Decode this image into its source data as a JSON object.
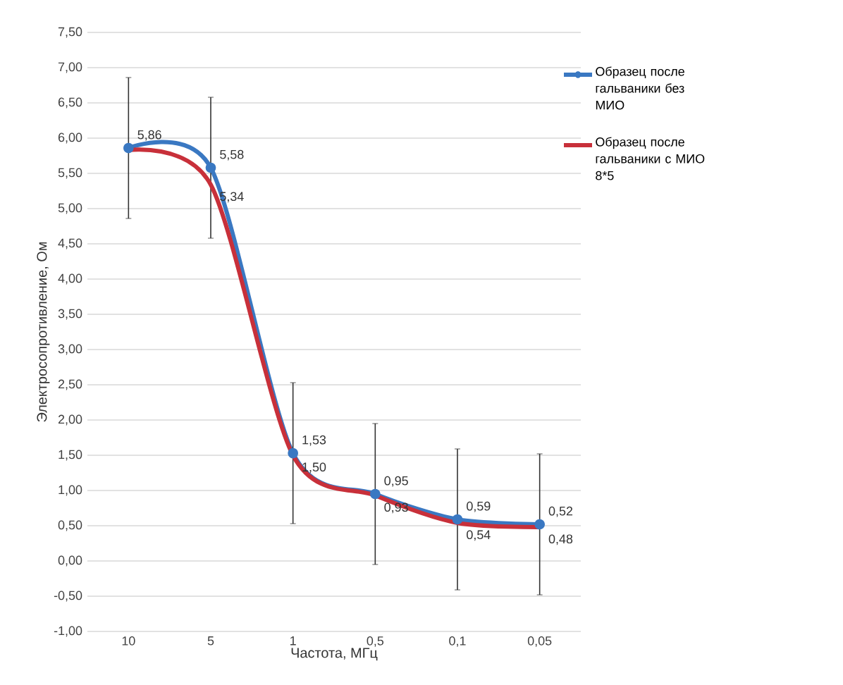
{
  "chart_data": {
    "type": "line",
    "xlabel": "Частота, МГц",
    "ylabel": "Электросопротивление, Ом",
    "categories": [
      "10",
      "5",
      "1",
      "0,5",
      "0,1",
      "0,05"
    ],
    "series": [
      {
        "name": "Образец после гальваники без МИО",
        "color": "#3a78c2",
        "values": [
          5.86,
          5.58,
          1.53,
          0.95,
          0.59,
          0.52
        ],
        "errors": [
          1,
          1,
          1,
          1,
          1,
          1
        ],
        "marker": "circle",
        "value_labels": [
          "5,86",
          "5,58",
          "1,53",
          "0,95",
          "0,59",
          "0,52"
        ]
      },
      {
        "name": "Образец после гальваники с МИО 8*5",
        "color": "#c8303a",
        "values": [
          5.83,
          5.34,
          1.5,
          0.93,
          0.54,
          0.48
        ],
        "marker": "none",
        "value_labels": [
          null,
          "5,34",
          "1,50",
          "0,93",
          "0,54",
          "0,48"
        ]
      }
    ],
    "ylim": [
      -1,
      7.5
    ],
    "yticks": [
      {
        "value": -1,
        "label": "-1,00"
      },
      {
        "value": -0.5,
        "label": "-0,50"
      },
      {
        "value": 0,
        "label": "0,00"
      },
      {
        "value": 0.5,
        "label": "0,50"
      },
      {
        "value": 1,
        "label": "1,00"
      },
      {
        "value": 1.5,
        "label": "1,50"
      },
      {
        "value": 2,
        "label": "2,00"
      },
      {
        "value": 2.5,
        "label": "2,50"
      },
      {
        "value": 3,
        "label": "3,00"
      },
      {
        "value": 3.5,
        "label": "3,50"
      },
      {
        "value": 4,
        "label": "4,00"
      },
      {
        "value": 4.5,
        "label": "4,50"
      },
      {
        "value": 5,
        "label": "5,00"
      },
      {
        "value": 5.5,
        "label": "5,50"
      },
      {
        "value": 6,
        "label": "6,00"
      },
      {
        "value": 6.5,
        "label": "6,50"
      },
      {
        "value": 7,
        "label": "7,00"
      },
      {
        "value": 7.5,
        "label": "7,50"
      }
    ],
    "grid": "y",
    "legend": "right",
    "line_style": "solid"
  }
}
